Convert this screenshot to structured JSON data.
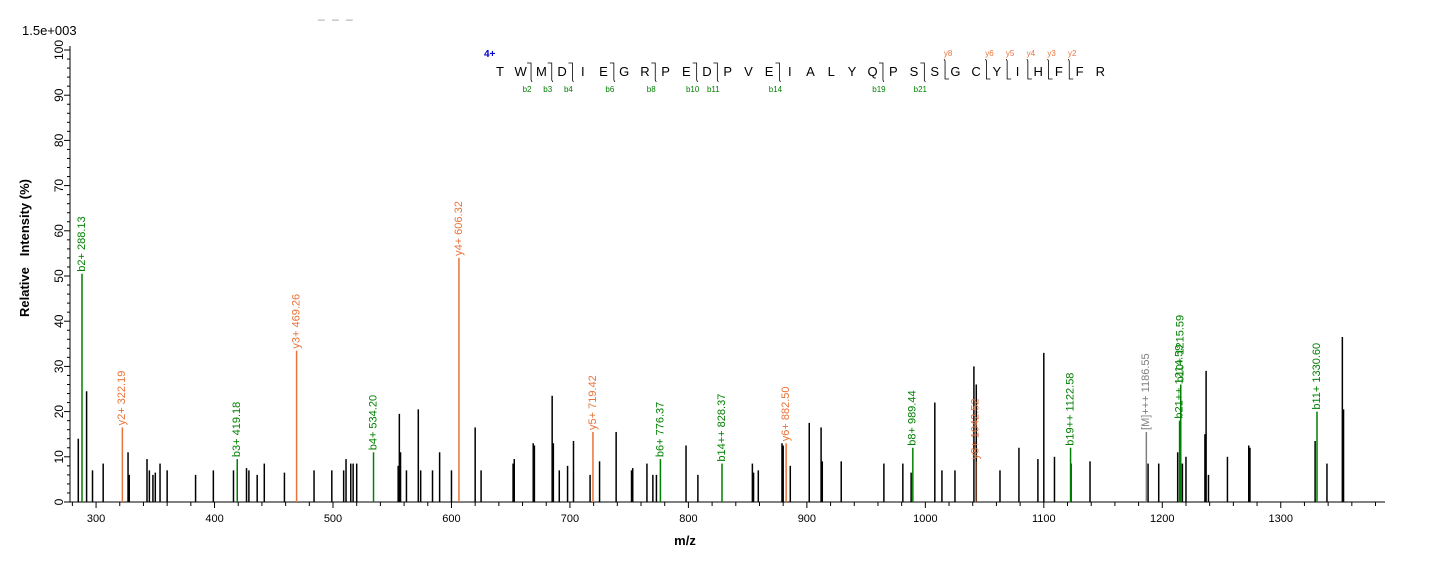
{
  "scale_label": "1.5e+003",
  "top_dashes": "–   –   –",
  "charge_label": "4+",
  "colors": {
    "b_ion": "#008000",
    "y_ion": "#e8743b",
    "precursor": "#808080",
    "other": "#000000",
    "charge": "#0000cc"
  },
  "chart_data": {
    "type": "bar",
    "xlabel": "m/z",
    "ylabel": "Relative   Intensity (%)",
    "xlim": [
      278,
      1388
    ],
    "ylim": [
      0,
      100
    ],
    "xticks": [
      300,
      400,
      500,
      600,
      700,
      800,
      900,
      1000,
      1100,
      1200,
      1300
    ],
    "yticks": [
      0,
      10,
      20,
      30,
      40,
      50,
      60,
      70,
      80,
      90,
      100
    ],
    "sequence": [
      "T",
      "W",
      "M",
      "D",
      "I",
      "E",
      "G",
      "R",
      "P",
      "E",
      "D",
      "P",
      "V",
      "E",
      "I",
      "A",
      "L",
      "Y",
      "Q",
      "P",
      "S",
      "S",
      "G",
      "C",
      "Y",
      "I",
      "H",
      "F",
      "F",
      "R"
    ],
    "b_fragments": [
      {
        "after": 2,
        "label": "b2"
      },
      {
        "after": 3,
        "label": "b3"
      },
      {
        "after": 4,
        "label": "b4"
      },
      {
        "after": 6,
        "label": "b6"
      },
      {
        "after": 8,
        "label": "b8"
      },
      {
        "after": 10,
        "label": "b10"
      },
      {
        "after": 11,
        "label": "b11"
      },
      {
        "after": 14,
        "label": "b14"
      },
      {
        "after": 19,
        "label": "b19"
      },
      {
        "after": 21,
        "label": "b21"
      }
    ],
    "y_fragments": [
      {
        "after": 22,
        "label": "y8"
      },
      {
        "after": 24,
        "label": "y6"
      },
      {
        "after": 25,
        "label": "y5"
      },
      {
        "after": 26,
        "label": "y4"
      },
      {
        "after": 27,
        "label": "y3"
      },
      {
        "after": 28,
        "label": "y2"
      }
    ],
    "annotated_peaks": [
      {
        "mz": 288.13,
        "intensity": 50.5,
        "label": "b2+ 288.13",
        "kind": "b"
      },
      {
        "mz": 322.19,
        "intensity": 16.5,
        "label": "y2+ 322.19",
        "kind": "y"
      },
      {
        "mz": 419.18,
        "intensity": 9.5,
        "label": "b3+ 419.18",
        "kind": "b"
      },
      {
        "mz": 469.26,
        "intensity": 33.5,
        "label": "y3+ 469.26",
        "kind": "y"
      },
      {
        "mz": 534.2,
        "intensity": 11.0,
        "label": "b4+ 534.20",
        "kind": "b"
      },
      {
        "mz": 606.32,
        "intensity": 54.0,
        "label": "y4+ 606.32",
        "kind": "y"
      },
      {
        "mz": 719.42,
        "intensity": 15.5,
        "label": "y5+ 719.42",
        "kind": "y"
      },
      {
        "mz": 776.37,
        "intensity": 9.5,
        "label": "b6+ 776.37",
        "kind": "b"
      },
      {
        "mz": 828.37,
        "intensity": 8.5,
        "label": "b14++ 828.37",
        "kind": "b"
      },
      {
        "mz": 882.5,
        "intensity": 13.0,
        "label": "y6+ 882.50",
        "kind": "y"
      },
      {
        "mz": 989.44,
        "intensity": 12.0,
        "label": "b8+ 989.44",
        "kind": "b"
      },
      {
        "mz": 1042.52,
        "intensity": 9.0,
        "label": "y8+ 1042.52",
        "kind": "y"
      },
      {
        "mz": 1122.58,
        "intensity": 12.0,
        "label": "b19++ 1122.58",
        "kind": "b"
      },
      {
        "mz": 1186.55,
        "intensity": 15.5,
        "label": "[M]+++ 1186.55",
        "kind": "precursor"
      },
      {
        "mz": 1214.59,
        "intensity": 18.0,
        "label": "b21++ 1214.59",
        "kind": "b"
      },
      {
        "mz": 1215.59,
        "intensity": 26.0,
        "label": "b10+ 1215.59",
        "kind": "b"
      },
      {
        "mz": 1330.6,
        "intensity": 20.0,
        "label": "b11+ 1330.60",
        "kind": "b"
      }
    ],
    "peaks": [
      {
        "mz": 285,
        "intensity": 14
      },
      {
        "mz": 292,
        "intensity": 24.5
      },
      {
        "mz": 297,
        "intensity": 7
      },
      {
        "mz": 306,
        "intensity": 8.5
      },
      {
        "mz": 327,
        "intensity": 11
      },
      {
        "mz": 328,
        "intensity": 6
      },
      {
        "mz": 343,
        "intensity": 9.5
      },
      {
        "mz": 345,
        "intensity": 7
      },
      {
        "mz": 348,
        "intensity": 6
      },
      {
        "mz": 350,
        "intensity": 6.5
      },
      {
        "mz": 354,
        "intensity": 8.5
      },
      {
        "mz": 360,
        "intensity": 7
      },
      {
        "mz": 384,
        "intensity": 6
      },
      {
        "mz": 399,
        "intensity": 7
      },
      {
        "mz": 416,
        "intensity": 7
      },
      {
        "mz": 427,
        "intensity": 7.5
      },
      {
        "mz": 429,
        "intensity": 7
      },
      {
        "mz": 436,
        "intensity": 6
      },
      {
        "mz": 442,
        "intensity": 8.5
      },
      {
        "mz": 459,
        "intensity": 6.5
      },
      {
        "mz": 484,
        "intensity": 7
      },
      {
        "mz": 499,
        "intensity": 7
      },
      {
        "mz": 509,
        "intensity": 7
      },
      {
        "mz": 511,
        "intensity": 9.5
      },
      {
        "mz": 515,
        "intensity": 8.5
      },
      {
        "mz": 517,
        "intensity": 8.5
      },
      {
        "mz": 520,
        "intensity": 8.5
      },
      {
        "mz": 555,
        "intensity": 8
      },
      {
        "mz": 556,
        "intensity": 19.5
      },
      {
        "mz": 557,
        "intensity": 11
      },
      {
        "mz": 562,
        "intensity": 7
      },
      {
        "mz": 572,
        "intensity": 20.5
      },
      {
        "mz": 574,
        "intensity": 7
      },
      {
        "mz": 584,
        "intensity": 7
      },
      {
        "mz": 590,
        "intensity": 11
      },
      {
        "mz": 600,
        "intensity": 7
      },
      {
        "mz": 620,
        "intensity": 16.5
      },
      {
        "mz": 625,
        "intensity": 7
      },
      {
        "mz": 652,
        "intensity": 8.5
      },
      {
        "mz": 653,
        "intensity": 9.5
      },
      {
        "mz": 669,
        "intensity": 13
      },
      {
        "mz": 670,
        "intensity": 12.5
      },
      {
        "mz": 685,
        "intensity": 23.5
      },
      {
        "mz": 686,
        "intensity": 13
      },
      {
        "mz": 691,
        "intensity": 7
      },
      {
        "mz": 698,
        "intensity": 8
      },
      {
        "mz": 703,
        "intensity": 13.5
      },
      {
        "mz": 717,
        "intensity": 6
      },
      {
        "mz": 725,
        "intensity": 9
      },
      {
        "mz": 739,
        "intensity": 15.5
      },
      {
        "mz": 752,
        "intensity": 7
      },
      {
        "mz": 753,
        "intensity": 7.5
      },
      {
        "mz": 765,
        "intensity": 8.5
      },
      {
        "mz": 770,
        "intensity": 6
      },
      {
        "mz": 773,
        "intensity": 6
      },
      {
        "mz": 798,
        "intensity": 12.5
      },
      {
        "mz": 808,
        "intensity": 6
      },
      {
        "mz": 854,
        "intensity": 8.5
      },
      {
        "mz": 855,
        "intensity": 6.5
      },
      {
        "mz": 859,
        "intensity": 7
      },
      {
        "mz": 879,
        "intensity": 13
      },
      {
        "mz": 880,
        "intensity": 12.5
      },
      {
        "mz": 886,
        "intensity": 8
      },
      {
        "mz": 902,
        "intensity": 17.5
      },
      {
        "mz": 912,
        "intensity": 16.5
      },
      {
        "mz": 913,
        "intensity": 9
      },
      {
        "mz": 929,
        "intensity": 9
      },
      {
        "mz": 965,
        "intensity": 8.5
      },
      {
        "mz": 981,
        "intensity": 8.5
      },
      {
        "mz": 988,
        "intensity": 6.5
      },
      {
        "mz": 1008,
        "intensity": 22
      },
      {
        "mz": 1014,
        "intensity": 7
      },
      {
        "mz": 1025,
        "intensity": 7
      },
      {
        "mz": 1041,
        "intensity": 30
      },
      {
        "mz": 1043,
        "intensity": 26
      },
      {
        "mz": 1063,
        "intensity": 7
      },
      {
        "mz": 1079,
        "intensity": 12
      },
      {
        "mz": 1095,
        "intensity": 9.5
      },
      {
        "mz": 1100,
        "intensity": 33
      },
      {
        "mz": 1109,
        "intensity": 10
      },
      {
        "mz": 1123,
        "intensity": 8.5
      },
      {
        "mz": 1139,
        "intensity": 9
      },
      {
        "mz": 1188,
        "intensity": 8.5
      },
      {
        "mz": 1197,
        "intensity": 8.5
      },
      {
        "mz": 1213,
        "intensity": 11
      },
      {
        "mz": 1217,
        "intensity": 8.5
      },
      {
        "mz": 1220,
        "intensity": 10
      },
      {
        "mz": 1236,
        "intensity": 15
      },
      {
        "mz": 1237,
        "intensity": 29
      },
      {
        "mz": 1239,
        "intensity": 6
      },
      {
        "mz": 1255,
        "intensity": 10
      },
      {
        "mz": 1273,
        "intensity": 12.5
      },
      {
        "mz": 1274,
        "intensity": 12
      },
      {
        "mz": 1329,
        "intensity": 13.5
      },
      {
        "mz": 1339,
        "intensity": 8.5
      },
      {
        "mz": 1352,
        "intensity": 36.5
      },
      {
        "mz": 1353,
        "intensity": 20.5
      }
    ]
  }
}
